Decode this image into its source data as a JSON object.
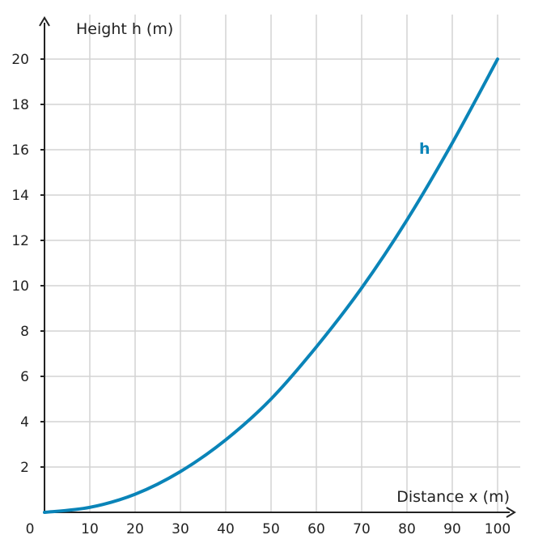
{
  "chart_data": {
    "type": "line",
    "xlabel": "Distance x (m)",
    "ylabel": "Height h (m)",
    "xlim": [
      0,
      100
    ],
    "ylim": [
      0,
      20
    ],
    "x_ticks": [
      10,
      20,
      30,
      40,
      50,
      60,
      70,
      80,
      90,
      100
    ],
    "y_ticks": [
      2,
      4,
      6,
      8,
      10,
      12,
      14,
      16,
      18,
      20
    ],
    "origin_label": "0",
    "grid": true,
    "series": [
      {
        "name": "h",
        "color": "#0a84b8",
        "x": [
          0,
          10,
          20,
          30,
          40,
          50,
          60,
          70,
          80,
          90,
          100
        ],
        "y": [
          0,
          0.22,
          0.8,
          1.8,
          3.2,
          5.0,
          7.3,
          9.9,
          12.9,
          16.3,
          20.0
        ]
      }
    ]
  }
}
